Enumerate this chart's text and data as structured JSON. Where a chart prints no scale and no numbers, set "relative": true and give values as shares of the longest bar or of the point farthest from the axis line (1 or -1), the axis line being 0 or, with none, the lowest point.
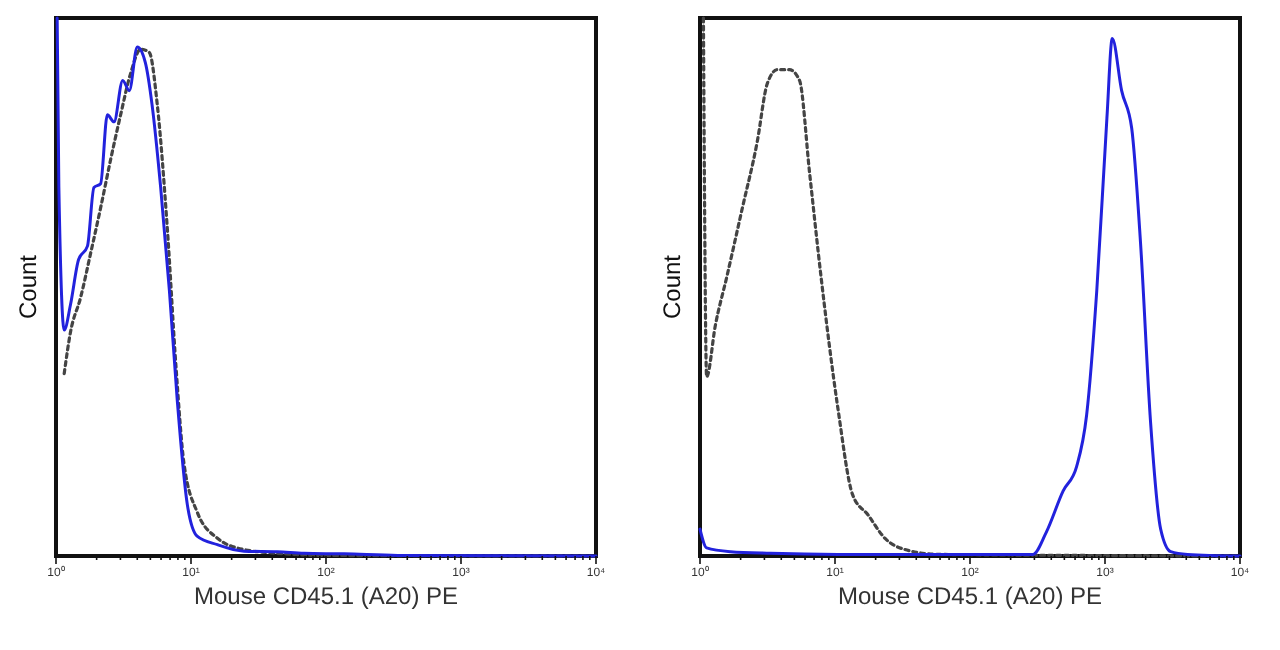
{
  "chart_data": [
    {
      "type": "line",
      "xlabel": "Mouse CD45.1 (A20) PE",
      "ylabel": "Count",
      "relative": true,
      "log": "x",
      "marker": "none",
      "xlim": [
        1,
        10000
      ],
      "xticks": [
        {
          "value": 1,
          "label": "10⁰"
        },
        {
          "value": 2,
          "label": null
        },
        {
          "value": 3,
          "label": null
        },
        {
          "value": 4,
          "label": null
        },
        {
          "value": 5,
          "label": null
        },
        {
          "value": 6,
          "label": null
        },
        {
          "value": 7,
          "label": null
        },
        {
          "value": 8,
          "label": null
        },
        {
          "value": 9,
          "label": null
        },
        {
          "value": 10,
          "label": "10¹"
        },
        {
          "value": 20,
          "label": null
        },
        {
          "value": 30,
          "label": null
        },
        {
          "value": 40,
          "label": null
        },
        {
          "value": 50,
          "label": null
        },
        {
          "value": 60,
          "label": null
        },
        {
          "value": 70,
          "label": null
        },
        {
          "value": 80,
          "label": null
        },
        {
          "value": 90,
          "label": null
        },
        {
          "value": 100,
          "label": "10²"
        },
        {
          "value": 200,
          "label": null
        },
        {
          "value": 300,
          "label": null
        },
        {
          "value": 400,
          "label": null
        },
        {
          "value": 500,
          "label": null
        },
        {
          "value": 600,
          "label": null
        },
        {
          "value": 700,
          "label": null
        },
        {
          "value": 800,
          "label": null
        },
        {
          "value": 900,
          "label": null
        },
        {
          "value": 1000,
          "label": "10³"
        },
        {
          "value": 2000,
          "label": null
        },
        {
          "value": 3000,
          "label": null
        },
        {
          "value": 4000,
          "label": null
        },
        {
          "value": 5000,
          "label": null
        },
        {
          "value": 6000,
          "label": null
        },
        {
          "value": 7000,
          "label": null
        },
        {
          "value": 8000,
          "label": null
        },
        {
          "value": 9000,
          "label": null
        },
        {
          "value": 10000,
          "label": "10⁴"
        }
      ],
      "series": [
        {
          "color": "#444444",
          "line_style": "dotted",
          "x": [
            1.15,
            1.28,
            1.52,
            1.81,
            2.14,
            2.54,
            3.01,
            3.57,
            4.24,
            4.91,
            5.62,
            6.68,
            7.74,
            8.87,
            11.1,
            15.7,
            24.7,
            43.6,
            108,
            10000
          ],
          "values": [
            0.339,
            0.416,
            0.48,
            0.564,
            0.647,
            0.737,
            0.82,
            0.897,
            0.942,
            0.936,
            0.84,
            0.608,
            0.352,
            0.172,
            0.082,
            0.033,
            0.012,
            0.005,
            0.001,
            0
          ]
        },
        {
          "color": "#2222dd",
          "line_style": "solid",
          "x": [
            1.02,
            1.05,
            1.15,
            1.28,
            1.47,
            1.71,
            1.91,
            2.14,
            2.4,
            2.69,
            3.12,
            3.49,
            4,
            4.59,
            5.14,
            5.96,
            6.92,
            7.92,
            9.4,
            11.1,
            15.7,
            24.7,
            43.6,
            68.7,
            136,
            339,
            10000
          ],
          "values": [
            1,
            0.685,
            0.42,
            0.467,
            0.551,
            0.576,
            0.685,
            0.692,
            0.82,
            0.807,
            0.884,
            0.865,
            0.946,
            0.917,
            0.84,
            0.685,
            0.493,
            0.288,
            0.095,
            0.037,
            0.021,
            0.009,
            0.008,
            0.005,
            0.004,
            0.001,
            0
          ]
        }
      ]
    },
    {
      "type": "line",
      "xlabel": "Mouse CD45.1 (A20) PE",
      "ylabel": "Count",
      "relative": true,
      "log": "x",
      "marker": "none",
      "xlim": [
        1,
        10000
      ],
      "xticks": [
        {
          "value": 1,
          "label": "10⁰"
        },
        {
          "value": 2,
          "label": null
        },
        {
          "value": 3,
          "label": null
        },
        {
          "value": 4,
          "label": null
        },
        {
          "value": 5,
          "label": null
        },
        {
          "value": 6,
          "label": null
        },
        {
          "value": 7,
          "label": null
        },
        {
          "value": 8,
          "label": null
        },
        {
          "value": 9,
          "label": null
        },
        {
          "value": 10,
          "label": "10¹"
        },
        {
          "value": 20,
          "label": null
        },
        {
          "value": 30,
          "label": null
        },
        {
          "value": 40,
          "label": null
        },
        {
          "value": 50,
          "label": null
        },
        {
          "value": 60,
          "label": null
        },
        {
          "value": 70,
          "label": null
        },
        {
          "value": 80,
          "label": null
        },
        {
          "value": 90,
          "label": null
        },
        {
          "value": 100,
          "label": "10²"
        },
        {
          "value": 200,
          "label": null
        },
        {
          "value": 300,
          "label": null
        },
        {
          "value": 400,
          "label": null
        },
        {
          "value": 500,
          "label": null
        },
        {
          "value": 600,
          "label": null
        },
        {
          "value": 700,
          "label": null
        },
        {
          "value": 800,
          "label": null
        },
        {
          "value": 900,
          "label": null
        },
        {
          "value": 1000,
          "label": "10³"
        },
        {
          "value": 2000,
          "label": null
        },
        {
          "value": 3000,
          "label": null
        },
        {
          "value": 4000,
          "label": null
        },
        {
          "value": 5000,
          "label": null
        },
        {
          "value": 6000,
          "label": null
        },
        {
          "value": 7000,
          "label": null
        },
        {
          "value": 8000,
          "label": null
        },
        {
          "value": 9000,
          "label": null
        },
        {
          "value": 10000,
          "label": "10⁴"
        }
      ],
      "series": [
        {
          "color": "#444444",
          "line_style": "dotted",
          "x": [
            1.06,
            1.12,
            1.3,
            1.58,
            2.06,
            2.65,
            3.15,
            3.74,
            4.6,
            5.46,
            6.49,
            7.88,
            10.5,
            13.5,
            17.6,
            23.4,
            33,
            58.6,
            10000
          ],
          "values": [
            1,
            0.333,
            0.429,
            0.519,
            0.647,
            0.769,
            0.878,
            0.904,
            0.904,
            0.884,
            0.711,
            0.519,
            0.275,
            0.114,
            0.076,
            0.033,
            0.012,
            0.003,
            0
          ]
        },
        {
          "color": "#2222dd",
          "line_style": "solid",
          "x": [
            1,
            1.12,
            1.68,
            3.33,
            10.5,
            104,
            292,
            367,
            490,
            616,
            731,
            869,
            1033,
            1132,
            1328,
            1577,
            1832,
            2175,
            2584,
            3069,
            4083,
            10000
          ],
          "values": [
            0.05,
            0.015,
            0.008,
            0.005,
            0.003,
            0.003,
            0.003,
            0.044,
            0.121,
            0.166,
            0.262,
            0.493,
            0.814,
            0.962,
            0.865,
            0.795,
            0.583,
            0.249,
            0.05,
            0.008,
            0.003,
            0
          ]
        }
      ]
    }
  ]
}
